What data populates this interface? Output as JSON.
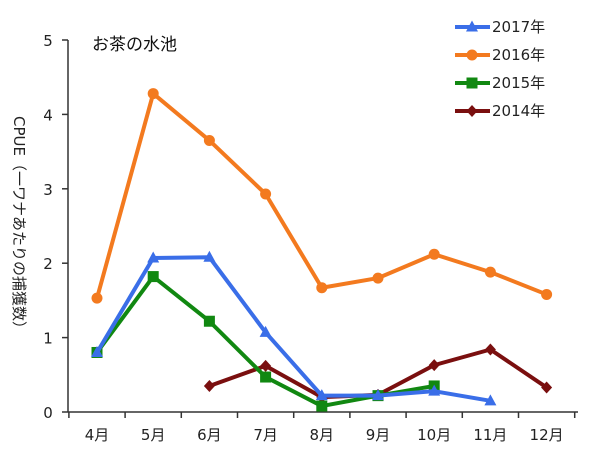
{
  "chart_data": {
    "type": "line",
    "title": "お茶の水池",
    "ylabel": "CPUE（一ワナあたりの捕獲数）",
    "xlabel": "",
    "ylim": [
      0,
      5
    ],
    "yticks": [
      0,
      1,
      2,
      3,
      4,
      5
    ],
    "categories": [
      "4月",
      "5月",
      "6月",
      "7月",
      "8月",
      "9月",
      "10月",
      "11月",
      "12月"
    ],
    "grid": false,
    "legend_position": "top-right",
    "series": [
      {
        "name": "2017年",
        "color": "#3a6ee8",
        "marker": "triangle",
        "values": [
          0.8,
          2.07,
          2.08,
          1.07,
          0.22,
          0.22,
          0.28,
          0.15,
          null
        ]
      },
      {
        "name": "2016年",
        "color": "#f37a1f",
        "marker": "circle",
        "values": [
          1.53,
          4.28,
          3.65,
          2.93,
          1.67,
          1.8,
          2.12,
          1.88,
          1.58
        ]
      },
      {
        "name": "2015年",
        "color": "#118811",
        "marker": "square",
        "values": [
          0.8,
          1.82,
          1.22,
          0.47,
          0.08,
          0.22,
          0.35,
          null,
          null
        ]
      },
      {
        "name": "2014年",
        "color": "#7a0f0f",
        "marker": "diamond",
        "values": [
          null,
          null,
          0.35,
          0.62,
          0.2,
          0.23,
          0.63,
          0.84,
          0.33
        ]
      }
    ]
  }
}
